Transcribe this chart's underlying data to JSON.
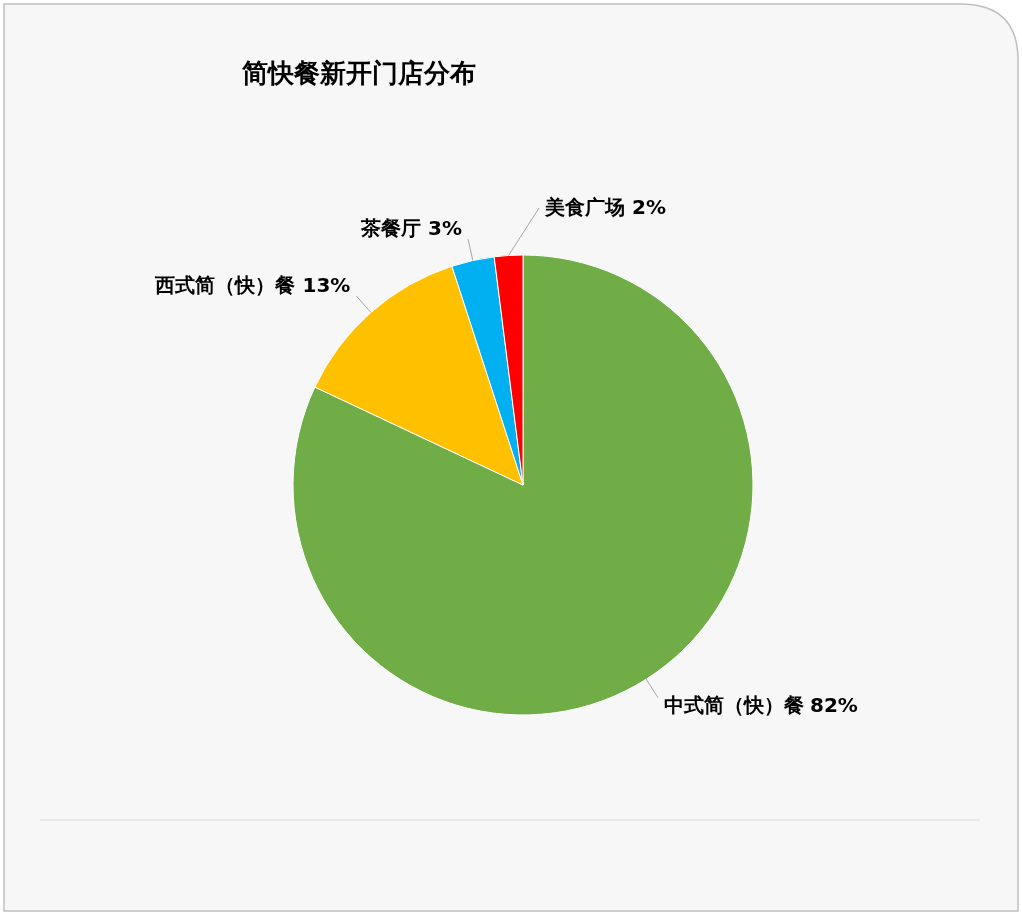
{
  "chart_data": {
    "type": "pie",
    "title": "简快餐新开门店分布",
    "categories": [
      "中式简（快）餐",
      "西式简（快）餐",
      "茶餐厅",
      "美食广场"
    ],
    "values": [
      82,
      13,
      3,
      2
    ],
    "value_labels": [
      "82%",
      "13%",
      "3%",
      "2%"
    ],
    "colors": [
      "#70ad47",
      "#ffc000",
      "#00b0f0",
      "#ff0000"
    ]
  }
}
